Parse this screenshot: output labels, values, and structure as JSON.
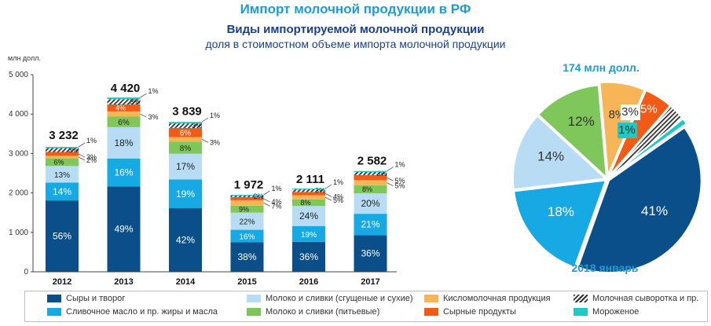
{
  "header": {
    "page_title": "Импорт молочной продукции в РФ",
    "chart_title": "Виды импортируемой молочной продукции",
    "chart_subtitle": "доля в стоимостном объеме импорта молочной продукции"
  },
  "colors": {
    "cheese": "#0b4f8a",
    "butter": "#16a9e4",
    "milk_dry": "#b8dcf3",
    "milk_drink": "#7fc65b",
    "sour": "#f7b557",
    "cheese_prod": "#f25a16",
    "whey": "#444444",
    "icecream": "#20c9c5"
  },
  "chart_data": [
    {
      "type": "bar",
      "stacked": true,
      "ylabel": "млн долл.",
      "ylim": [
        0,
        5000
      ],
      "yticks": [
        0,
        1000,
        2000,
        3000,
        4000,
        5000
      ],
      "ytick_labels": [
        "0",
        "1 000",
        "2 000",
        "3 000",
        "4 000",
        "5 000"
      ],
      "categories": [
        "2012",
        "2013",
        "2014",
        "2015",
        "2016",
        "2017"
      ],
      "totals": [
        3232,
        4420,
        3839,
        1972,
        2111,
        2582
      ],
      "total_labels": [
        "3 232",
        "4 420",
        "3 839",
        "1 972",
        "2 111",
        "2 582"
      ],
      "series": [
        {
          "key": "cheese",
          "name": "Сыры и творог",
          "pct": [
            56,
            49,
            42,
            38,
            36,
            36
          ]
        },
        {
          "key": "butter",
          "name": "Сливочное масло и пр. жиры и масла",
          "pct": [
            14,
            16,
            19,
            16,
            19,
            21
          ]
        },
        {
          "key": "milk_dry",
          "name": "Молоко и сливки (сгущеные и сухие)",
          "pct": [
            13,
            18,
            17,
            22,
            24,
            20
          ]
        },
        {
          "key": "milk_drink",
          "name": "Молоко и сливки (питьевые)",
          "pct": [
            6,
            6,
            8,
            9,
            8,
            8
          ]
        },
        {
          "key": "sour",
          "name": "Кисломолочная продукция",
          "pct": [
            2,
            3,
            3,
            7,
            5,
            5
          ]
        },
        {
          "key": "cheese_prod",
          "name": "Сырные продукты",
          "pct": [
            3,
            4,
            6,
            4,
            4,
            5
          ]
        },
        {
          "key": "whey",
          "name": "Молочная сыворотка и пр.",
          "pct": [
            3,
            3,
            3,
            2,
            3,
            3
          ]
        },
        {
          "key": "icecream",
          "name": "Мороженое",
          "pct": [
            1,
            1,
            1,
            1,
            1,
            1
          ]
        }
      ]
    },
    {
      "type": "pie",
      "title": "174 млн долл.",
      "subtitle": "2018 январь",
      "slices": [
        {
          "key": "cheese",
          "label": "41%",
          "value": 41
        },
        {
          "key": "butter",
          "label": "18%",
          "value": 18
        },
        {
          "key": "milk_dry",
          "label": "14%",
          "value": 14
        },
        {
          "key": "milk_drink",
          "label": "12%",
          "value": 12
        },
        {
          "key": "sour",
          "label": "8%",
          "value": 8
        },
        {
          "key": "cheese_prod",
          "label": "5%",
          "value": 5
        },
        {
          "key": "whey",
          "label": "3%",
          "value": 3
        },
        {
          "key": "icecream",
          "label": "1%",
          "value": 1
        }
      ]
    }
  ],
  "legend": [
    {
      "key": "cheese",
      "label": "Сыры и творог"
    },
    {
      "key": "milk_dry",
      "label": "Молоко и сливки (сгущеные и сухие)"
    },
    {
      "key": "sour",
      "label": "Кисломолочная продукция"
    },
    {
      "key": "whey",
      "label": "Молочная сыворотка и пр."
    },
    {
      "key": "butter",
      "label": "Сливочное масло и пр. жиры и масла"
    },
    {
      "key": "milk_drink",
      "label": "Молоко и сливки (питьевые)"
    },
    {
      "key": "cheese_prod",
      "label": "Сырные продукты"
    },
    {
      "key": "icecream",
      "label": "Мороженое"
    }
  ]
}
